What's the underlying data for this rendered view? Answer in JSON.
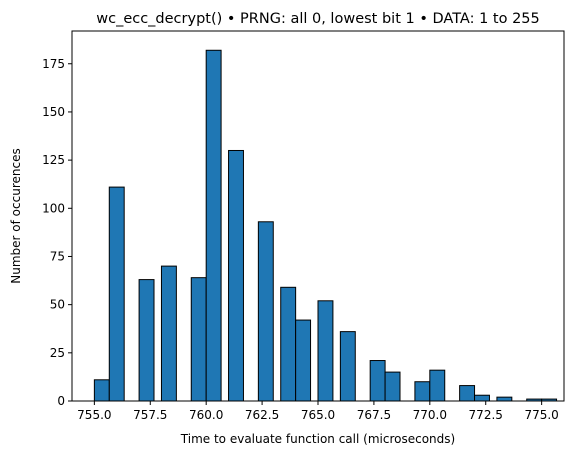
{
  "chart_data": {
    "type": "bar",
    "title": "wc_ecc_decrypt() • PRNG: all 0, lowest bit 1 • DATA: 1 to 255",
    "xlabel": "Time to evaluate function call (microseconds)",
    "ylabel": "Number of occurences",
    "xlim": [
      754.0,
      776.0
    ],
    "ylim": [
      0,
      192
    ],
    "xticks": [
      755.0,
      757.5,
      760.0,
      762.5,
      765.0,
      767.5,
      770.0,
      772.5,
      775.0
    ],
    "xtick_labels": [
      "755.0",
      "757.5",
      "760.0",
      "762.5",
      "765.0",
      "767.5",
      "770.0",
      "772.5",
      "775.0"
    ],
    "yticks": [
      0,
      25,
      50,
      75,
      100,
      125,
      150,
      175
    ],
    "ytick_labels": [
      "0",
      "25",
      "50",
      "75",
      "100",
      "125",
      "150",
      "175"
    ],
    "bar_color": "#1f77b4",
    "edge_color": "#000000",
    "bin_width": 0.667,
    "bins": [
      {
        "x0": 755.0,
        "value": 11
      },
      {
        "x0": 755.667,
        "value": 111
      },
      {
        "x0": 757.0,
        "value": 63
      },
      {
        "x0": 758.0,
        "value": 70
      },
      {
        "x0": 759.333,
        "value": 64
      },
      {
        "x0": 760.0,
        "value": 182
      },
      {
        "x0": 761.0,
        "value": 130
      },
      {
        "x0": 762.333,
        "value": 93
      },
      {
        "x0": 763.333,
        "value": 59
      },
      {
        "x0": 764.0,
        "value": 42
      },
      {
        "x0": 765.0,
        "value": 52
      },
      {
        "x0": 766.0,
        "value": 36
      },
      {
        "x0": 767.333,
        "value": 21
      },
      {
        "x0": 768.0,
        "value": 15
      },
      {
        "x0": 769.333,
        "value": 10
      },
      {
        "x0": 770.0,
        "value": 16
      },
      {
        "x0": 771.333,
        "value": 8
      },
      {
        "x0": 772.0,
        "value": 3
      },
      {
        "x0": 773.0,
        "value": 2
      },
      {
        "x0": 774.333,
        "value": 1
      },
      {
        "x0": 775.0,
        "value": 1
      }
    ],
    "grid": false,
    "legend": "none"
  }
}
